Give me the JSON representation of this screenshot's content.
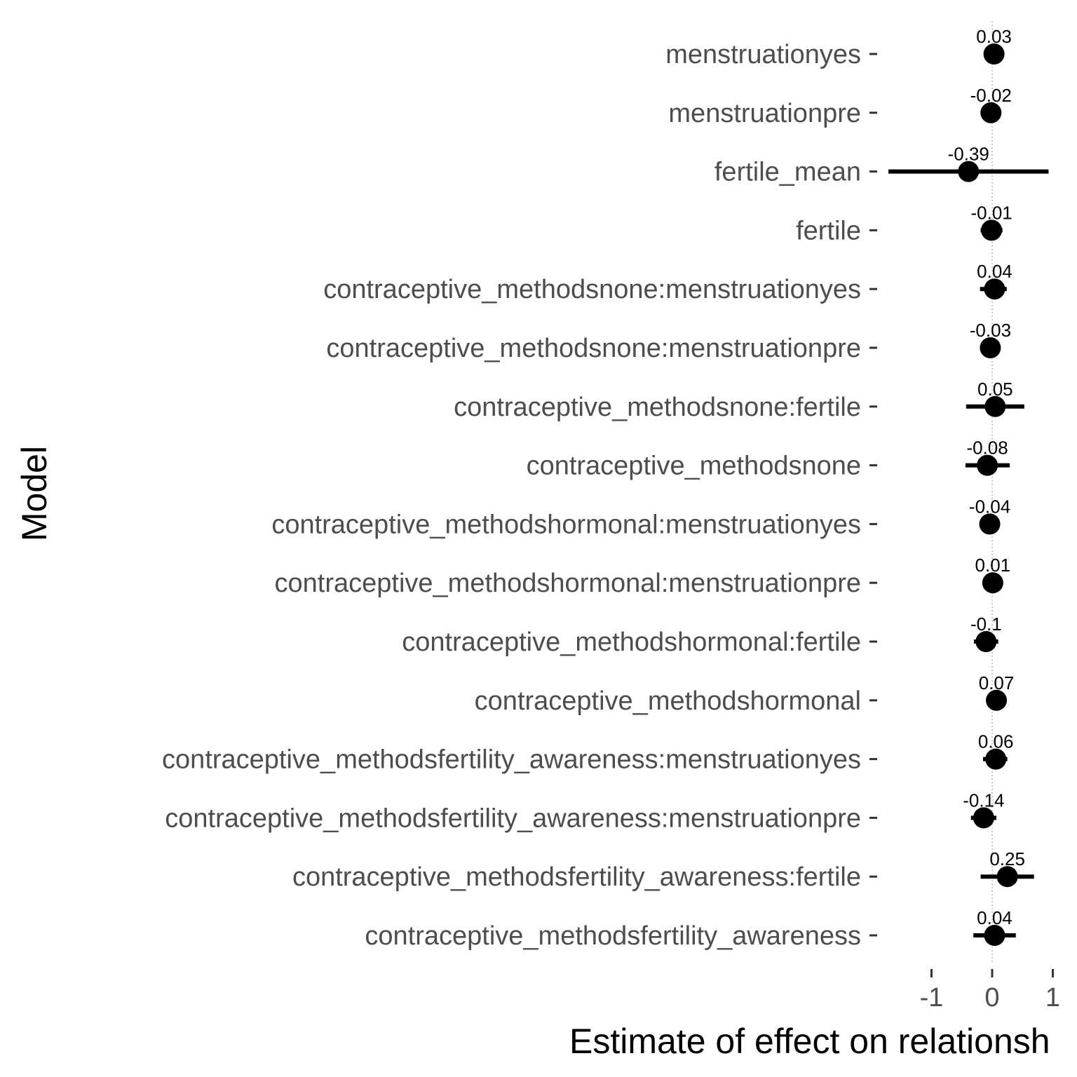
{
  "chart_data": {
    "type": "forest",
    "xlabel": "Estimate of effect on relationsh",
    "ylabel": "Model",
    "xlim": [
      -1.3,
      1.4
    ],
    "xticks": [
      -1,
      0,
      1
    ],
    "xtick_labels": [
      "-1",
      "0",
      "1"
    ],
    "reference_line": 0,
    "grid": false,
    "categories": [
      "menstruationyes",
      "menstruationpre",
      "fertile_mean",
      "fertile",
      "contraceptive_methodsnone:menstruationyes",
      "contraceptive_methodsnone:menstruationpre",
      "contraceptive_methodsnone:fertile",
      "contraceptive_methodsnone",
      "contraceptive_methodshormonal:menstruationyes",
      "contraceptive_methodshormonal:menstruationpre",
      "contraceptive_methodshormonal:fertile",
      "contraceptive_methodshormonal",
      "contraceptive_methodsfertility_awareness:menstruationyes",
      "contraceptive_methodsfertility_awareness:menstruationpre",
      "contraceptive_methodsfertility_awareness:fertile",
      "contraceptive_methodsfertility_awareness"
    ],
    "estimates": [
      0.03,
      -0.02,
      -0.39,
      -0.01,
      0.04,
      -0.03,
      0.05,
      -0.08,
      -0.04,
      0.01,
      -0.1,
      0.07,
      0.06,
      -0.14,
      0.25,
      0.04
    ],
    "estimate_labels": [
      "0.03",
      "-0.02",
      "-0.39",
      "-0.01",
      "0.04",
      "-0.03",
      "0.05",
      "-0.08",
      "-0.04",
      "0.01",
      "-0.1",
      "0.07",
      "0.06",
      "-0.14",
      "0.25",
      "0.04"
    ],
    "ci_low": [
      0.0,
      -0.05,
      -1.71,
      -0.19,
      -0.2,
      -0.2,
      -0.43,
      -0.44,
      -0.08,
      -0.01,
      -0.3,
      0.03,
      -0.15,
      -0.35,
      -0.19,
      -0.31
    ],
    "ci_high": [
      0.06,
      0.01,
      0.93,
      0.17,
      0.24,
      0.14,
      0.53,
      0.29,
      0.0,
      0.03,
      0.1,
      0.11,
      0.25,
      0.07,
      0.69,
      0.39
    ]
  }
}
